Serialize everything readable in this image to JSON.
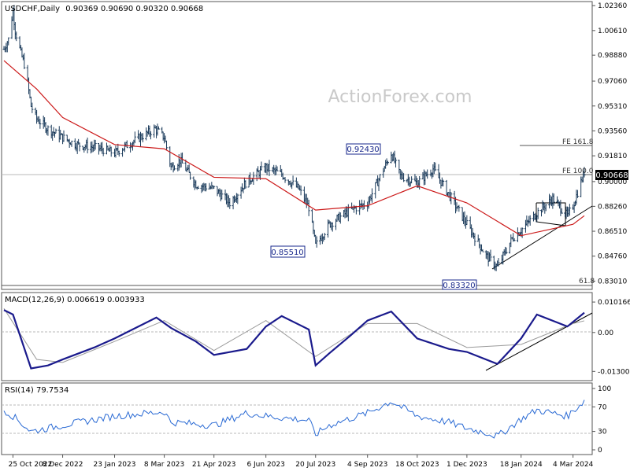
{
  "header": {
    "symbol_timeframe": "USDCHF,Daily",
    "ohlc": "0.90369 0.90690 0.90320 0.90668"
  },
  "watermark": "ActionForex.com",
  "panels": {
    "price": {
      "y_ticks": [
        "1.02360",
        "1.00610",
        "0.98880",
        "0.97060",
        "0.95310",
        "0.93560",
        "0.91810",
        "0.90000",
        "0.88260",
        "0.86510",
        "0.84760",
        "0.83010"
      ],
      "current_price_label": "0.90668",
      "annotations": {
        "high_label": "0.92430",
        "low1_label": "0.85510",
        "low2_label": "0.83320",
        "fe161": "FE 161.8",
        "fe100": "FE 100.0",
        "fib618": "61.8"
      }
    },
    "macd": {
      "title": "MACD(12,26,9) 0.006619 0.003933",
      "y_ticks": [
        "0.010166",
        "0.00",
        "-0.013006"
      ]
    },
    "rsi": {
      "title": "RSI(14) 79.7534",
      "y_ticks": [
        "100",
        "70",
        "30",
        "0"
      ]
    }
  },
  "x_labels": [
    "25 Oct 2022",
    "8 Dec 2022",
    "23 Jan 2023",
    "8 Mar 2023",
    "21 Apr 2023",
    "6 Jun 2023",
    "20 Jul 2023",
    "4 Sep 2023",
    "18 Oct 2023",
    "1 Dec 2023",
    "18 Jan 2024",
    "4 Mar 2024"
  ],
  "colors": {
    "price_bars": "#1a3a5a",
    "moving_average": "#cc1a1a",
    "macd_line": "#1a1a8c",
    "signal_line": "#9a9a9a",
    "rsi_line": "#2a6ad4",
    "annotation_box": "#1a2a8c",
    "trendline": "#000000",
    "grid": "#b8b8b8"
  },
  "chart_data": [
    {
      "type": "line",
      "title": "USDCHF,Daily",
      "series": [
        {
          "name": "",
          "kind": "price (bars)",
          "x": [
            "2022-10-17",
            "2022-10-21",
            "2022-10-25",
            "2022-10-27",
            "2022-11-01",
            "2022-11-05",
            "2022-11-10",
            "2022-11-15",
            "2022-11-25",
            "2022-12-08",
            "2022-12-20",
            "2023-01-05",
            "2023-01-15",
            "2023-01-23",
            "2023-02-10",
            "2023-02-28",
            "2023-03-08",
            "2023-03-14",
            "2023-03-22",
            "2023-04-05",
            "2023-04-21",
            "2023-05-05",
            "2023-05-20",
            "2023-06-06",
            "2023-06-20",
            "2023-07-05",
            "2023-07-14",
            "2023-07-20",
            "2023-08-01",
            "2023-08-20",
            "2023-09-04",
            "2023-09-25",
            "2023-10-03",
            "2023-10-18",
            "2023-11-01",
            "2023-11-15",
            "2023-12-01",
            "2023-12-18",
            "2023-12-28",
            "2024-01-10",
            "2024-01-18",
            "2024-02-01",
            "2024-02-15",
            "2024-02-28",
            "2024-03-04",
            "2024-03-14"
          ],
          "values": [
            0.993,
            1.0,
            1.02,
            1.006,
            0.99,
            0.98,
            0.953,
            0.944,
            0.937,
            0.931,
            0.926,
            0.924,
            0.922,
            0.92,
            0.929,
            0.937,
            0.931,
            0.91,
            0.915,
            0.898,
            0.895,
            0.885,
            0.9,
            0.91,
            0.905,
            0.895,
            0.882,
            0.855,
            0.87,
            0.88,
            0.885,
            0.92,
            0.904,
            0.899,
            0.909,
            0.891,
            0.87,
            0.848,
            0.84,
            0.86,
            0.866,
            0.878,
            0.888,
            0.876,
            0.883,
            0.9067
          ]
        },
        {
          "name": "",
          "kind": "moving average",
          "x": [
            "2022-10-17",
            "2022-11-15",
            "2022-12-08",
            "2023-01-23",
            "2023-03-08",
            "2023-04-21",
            "2023-06-06",
            "2023-07-20",
            "2023-09-04",
            "2023-10-18",
            "2023-12-01",
            "2024-01-18",
            "2024-03-04",
            "2024-03-14"
          ],
          "values": [
            0.985,
            0.965,
            0.945,
            0.926,
            0.923,
            0.903,
            0.902,
            0.88,
            0.883,
            0.897,
            0.885,
            0.862,
            0.87,
            0.876
          ]
        }
      ],
      "ylim": [
        0.827,
        1.0248
      ],
      "y_ticks": [
        1.0236,
        1.0061,
        0.9888,
        0.9706,
        0.9531,
        0.9356,
        0.9181,
        0.9,
        0.8826,
        0.8651,
        0.8476,
        0.8301
      ],
      "grid": false,
      "annotations": [
        {
          "label": "0.92430",
          "x": "2023-09-25",
          "y": 0.9243
        },
        {
          "label": "0.85510",
          "x": "2023-07-20",
          "y": 0.8551
        },
        {
          "label": "0.83320",
          "x": "2023-12-28",
          "y": 0.8332
        },
        {
          "label": "FE 161.8",
          "y": 0.9275
        },
        {
          "label": "FE 100.0",
          "y": 0.9061
        },
        {
          "label": "61.8",
          "y": 0.8332
        }
      ]
    },
    {
      "type": "line",
      "title": "MACD(12,26,9) 0.006619 0.003933",
      "series": [
        {
          "name": "",
          "kind": "macd",
          "x": [
            "2022-10-17",
            "2022-10-25",
            "2022-11-10",
            "2022-11-25",
            "2022-12-08",
            "2023-01-05",
            "2023-01-23",
            "2023-03-01",
            "2023-03-14",
            "2023-04-05",
            "2023-04-21",
            "2023-05-20",
            "2023-06-06",
            "2023-06-20",
            "2023-07-14",
            "2023-07-20",
            "2023-08-01",
            "2023-08-20",
            "2023-09-04",
            "2023-09-25",
            "2023-10-18",
            "2023-11-15",
            "2023-12-01",
            "2023-12-28",
            "2024-01-18",
            "2024-02-01",
            "2024-02-28",
            "2024-03-14"
          ],
          "values": [
            0.0075,
            0.006,
            -0.012,
            -0.011,
            -0.009,
            -0.005,
            -0.002,
            0.005,
            0.0015,
            -0.003,
            -0.0075,
            -0.0055,
            0.002,
            0.0055,
            0.001,
            -0.011,
            -0.007,
            -0.001,
            0.004,
            0.007,
            -0.002,
            -0.0055,
            -0.0065,
            -0.0105,
            -0.002,
            0.006,
            0.002,
            0.0066
          ]
        },
        {
          "name": "",
          "kind": "signal",
          "x": [
            "2022-10-17",
            "2022-11-15",
            "2022-12-08",
            "2023-01-23",
            "2023-03-08",
            "2023-04-21",
            "2023-06-06",
            "2023-07-20",
            "2023-09-04",
            "2023-10-18",
            "2023-12-01",
            "2024-01-18",
            "2024-03-04",
            "2024-03-14"
          ],
          "values": [
            0.008,
            -0.009,
            -0.01,
            -0.003,
            0.004,
            -0.006,
            0.004,
            -0.008,
            0.003,
            0.003,
            -0.005,
            -0.004,
            0.003,
            0.0039
          ]
        }
      ],
      "ylim": [
        -0.0145,
        0.0115
      ],
      "y_ticks": [
        0.010166,
        0.0,
        -0.013006
      ]
    },
    {
      "type": "line",
      "title": "RSI(14) 79.7534",
      "series": [
        {
          "name": "",
          "kind": "rsi",
          "x": [
            "2022-10-17",
            "2022-10-25",
            "2022-11-10",
            "2022-12-08",
            "2023-01-23",
            "2023-03-08",
            "2023-03-14",
            "2023-04-21",
            "2023-05-20",
            "2023-06-06",
            "2023-07-14",
            "2023-07-20",
            "2023-08-01",
            "2023-09-04",
            "2023-09-25",
            "2023-10-18",
            "2023-11-15",
            "2023-12-01",
            "2023-12-18",
            "2023-12-28",
            "2024-01-18",
            "2024-02-01",
            "2024-02-28",
            "2024-03-14"
          ],
          "values": [
            65,
            55,
            30,
            40,
            55,
            62,
            45,
            40,
            60,
            55,
            48,
            25,
            40,
            60,
            79,
            55,
            45,
            35,
            28,
            22,
            50,
            65,
            55,
            79.75
          ]
        }
      ],
      "ylim": [
        0,
        100
      ],
      "y_ticks": [
        100,
        70,
        30,
        0
      ]
    }
  ]
}
